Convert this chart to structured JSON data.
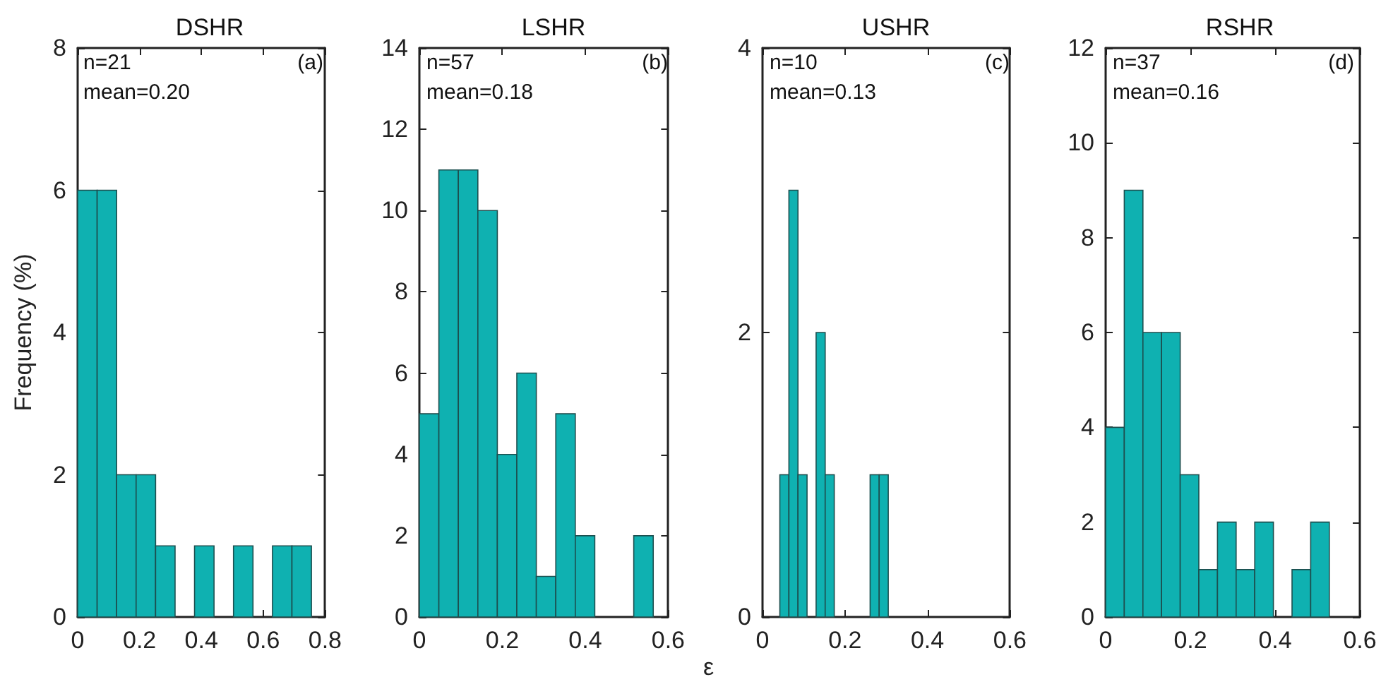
{
  "chart_data": [
    {
      "type": "histogram",
      "title": "DSHR",
      "ylabel": "Frequency (%)",
      "annotations": [
        "n=21",
        "mean=0.20",
        "(a)"
      ],
      "color": "#0fb1b1",
      "bins": [
        0,
        0.063,
        0.126,
        0.189,
        0.252,
        0.315,
        0.378,
        0.441,
        0.504,
        0.567,
        0.63,
        0.693,
        0.756
      ],
      "values": [
        6,
        6,
        2,
        2,
        1,
        0,
        1,
        0,
        1,
        0,
        1,
        1
      ],
      "xlim": [
        0,
        0.8
      ],
      "xticks": [
        0,
        0.2,
        0.4,
        0.6,
        0.8
      ],
      "ylim": [
        0,
        8
      ],
      "yticks": [
        0,
        2,
        4,
        6,
        8
      ],
      "grid": false
    },
    {
      "type": "histogram",
      "title": "LSHR",
      "annotations": [
        "n=57",
        "mean=0.18",
        "(b)"
      ],
      "color": "#0fb1b1",
      "bins": [
        0,
        0.047,
        0.094,
        0.141,
        0.188,
        0.235,
        0.282,
        0.329,
        0.376,
        0.423,
        0.47,
        0.517,
        0.564
      ],
      "values": [
        5,
        11,
        11,
        10,
        4,
        6,
        1,
        5,
        2,
        0,
        0,
        2
      ],
      "xlim": [
        0,
        0.6
      ],
      "xticks": [
        0,
        0.2,
        0.4,
        0.6
      ],
      "ylim": [
        0,
        14
      ],
      "yticks": [
        0,
        2,
        4,
        6,
        8,
        10,
        12,
        14
      ],
      "grid": false
    },
    {
      "type": "histogram",
      "title": "USHR",
      "xlabel": "ε",
      "annotations": [
        "n=10",
        "mean=0.13",
        "(c)"
      ],
      "color": "#0fb1b1",
      "bins": [
        0.042,
        0.064,
        0.086,
        0.108,
        0.13,
        0.152,
        0.174,
        0.261,
        0.283,
        0.305
      ],
      "values": [
        1,
        3,
        1,
        0,
        2,
        1,
        0,
        1,
        1
      ],
      "xlim": [
        0,
        0.6
      ],
      "xticks": [
        0,
        0.2,
        0.4,
        0.6
      ],
      "ylim": [
        0,
        4
      ],
      "yticks": [
        0,
        2,
        4
      ],
      "grid": false
    },
    {
      "type": "histogram",
      "title": "RSHR",
      "annotations": [
        "n=37",
        "mean=0.16",
        "(d)"
      ],
      "color": "#0fb1b1",
      "bins": [
        0,
        0.044,
        0.088,
        0.132,
        0.176,
        0.22,
        0.264,
        0.308,
        0.352,
        0.396,
        0.44,
        0.484,
        0.528
      ],
      "values": [
        4,
        9,
        6,
        6,
        3,
        1,
        2,
        1,
        2,
        0,
        1,
        2
      ],
      "xlim": [
        0,
        0.6
      ],
      "xticks": [
        0,
        0.2,
        0.4,
        0.6
      ],
      "ylim": [
        0,
        12
      ],
      "yticks": [
        0,
        2,
        4,
        6,
        8,
        10,
        12
      ],
      "grid": false
    }
  ]
}
